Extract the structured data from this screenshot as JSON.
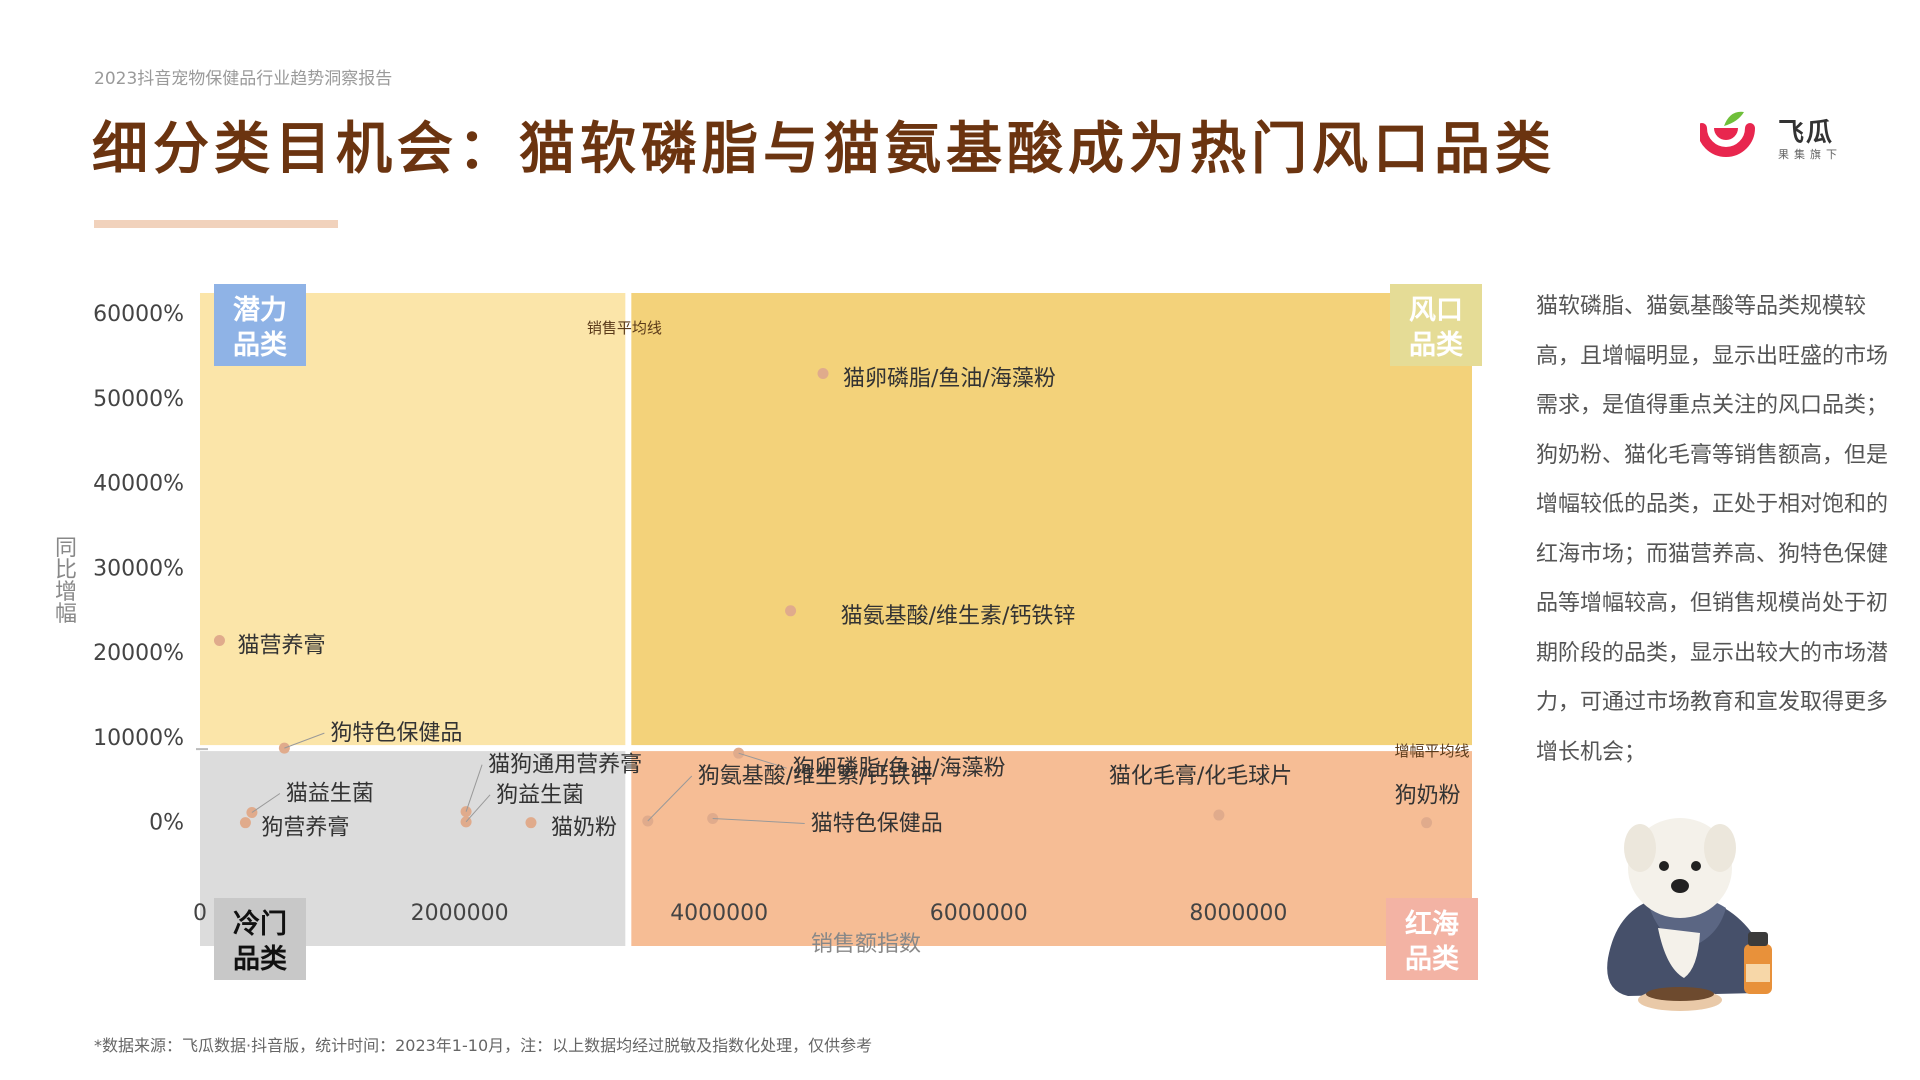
{
  "header": {
    "report_name": "2023抖音宠物保健品行业趋势洞察报告",
    "title": "细分类目机会：猫软磷脂与猫氨基酸成为热门风口品类"
  },
  "logo": {
    "name": "飞瓜",
    "subtitle": "果集旗下",
    "icon": "feigua-logo-icon"
  },
  "description": "猫软磷脂、猫氨基酸等品类规模较高，且增幅明显，显示出旺盛的市场需求，是值得重点关注的风口品类；狗奶粉、猫化毛膏等销售额高，但是增幅较低的品类，正处于相对饱和的红海市场；而猫营养高、狗特色保健品等增幅较高，但销售规模尚处于初期阶段的品类，显示出较大的市场潜力，可通过市场教育和宣发取得更多增长机会；",
  "footer": {
    "source_note": "*数据来源：飞瓜数据·抖音版，统计时间：2023年1-10月，注：以上数据均经过脱敏及指数化处理，仅供参考"
  },
  "chart_data": {
    "type": "scatter",
    "xlabel": "销售额指数",
    "ylabel": "同比增幅",
    "x_ticks": [
      {
        "value": 0,
        "label": "0"
      },
      {
        "value": 2000000,
        "label": "2000000"
      },
      {
        "value": 4000000,
        "label": "4000000"
      },
      {
        "value": 6000000,
        "label": "6000000"
      },
      {
        "value": 8000000,
        "label": "8000000"
      }
    ],
    "y_ticks": [
      {
        "value": 0,
        "label": "0%"
      },
      {
        "value": 10000,
        "label": "10000%"
      },
      {
        "value": 20000,
        "label": "20000%"
      },
      {
        "value": 30000,
        "label": "30000%"
      },
      {
        "value": 40000,
        "label": "40000%"
      },
      {
        "value": 50000,
        "label": "50000%"
      },
      {
        "value": 60000,
        "label": "60000%"
      }
    ],
    "xlim": [
      0,
      9800000
    ],
    "ylim": [
      -7000,
      62500
    ],
    "sales_average_line": {
      "x": 3300000,
      "label": "销售平均线"
    },
    "growth_average_line": {
      "y": 8800,
      "label": "增幅平均线"
    },
    "quadrants": [
      {
        "id": "potential",
        "name": "潜力品类",
        "line1": "潜力",
        "line2": "品类",
        "fill": "#fbe5a9",
        "tag_color": "#8fb3e6"
      },
      {
        "id": "hot",
        "name": "风口品类",
        "line1": "风口",
        "line2": "品类",
        "fill": "#f3d27a",
        "tag_color": "#e5dc96"
      },
      {
        "id": "cold",
        "name": "冷门品类",
        "line1": "冷门",
        "line2": "品类",
        "fill": "#dcdcdc",
        "tag_color": "#c8c8c8"
      },
      {
        "id": "redsea",
        "name": "红海品类",
        "line1": "红海",
        "line2": "品类",
        "fill": "#f6bd95",
        "tag_color": "#f3b3a4"
      }
    ],
    "point_color": "#e0ab8c",
    "points": [
      {
        "label": "猫卵磷脂/鱼油/海藻粉",
        "x": 4800000,
        "y": 53000
      },
      {
        "label": "猫氨基酸/维生素/钙铁锌",
        "x": 4550000,
        "y": 25000
      },
      {
        "label": "猫营养膏",
        "x": 150000,
        "y": 21500
      },
      {
        "label": "狗特色保健品",
        "x": 650000,
        "y": 8800
      },
      {
        "label": "猫益生菌",
        "x": 400000,
        "y": 1200
      },
      {
        "label": "狗营养膏",
        "x": 350000,
        "y": 0
      },
      {
        "label": "猫狗通用营养膏",
        "x": 2050000,
        "y": 1300
      },
      {
        "label": "狗益生菌",
        "x": 2050000,
        "y": 100
      },
      {
        "label": "猫奶粉",
        "x": 2550000,
        "y": 0
      },
      {
        "label": "狗卵磷脂/鱼油/海藻粉",
        "x": 4150000,
        "y": 8200
      },
      {
        "label": "狗氨基酸/维生素/钙铁锌",
        "x": 3450000,
        "y": 200
      },
      {
        "label": "猫特色保健品",
        "x": 3950000,
        "y": 500
      },
      {
        "label": "猫化毛膏/化毛球片",
        "x": 7850000,
        "y": 900
      },
      {
        "label": "狗奶粉",
        "x": 9450000,
        "y": 0
      }
    ]
  }
}
